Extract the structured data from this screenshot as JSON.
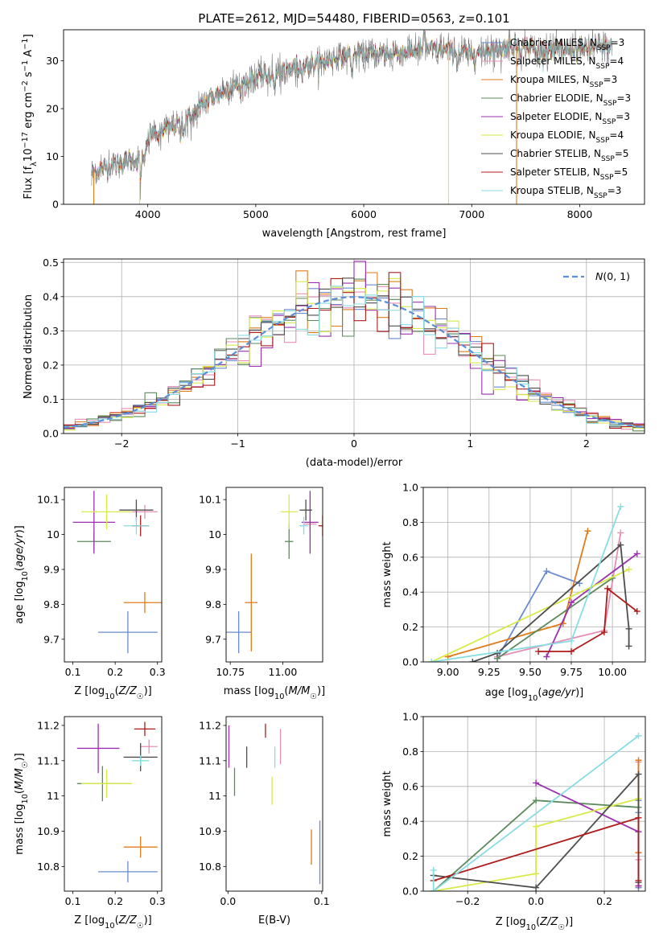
{
  "chart_data": [
    {
      "id": "spectrum",
      "type": "line",
      "title": "PLATE=2612, MJD=54480, FIBERID=0563, z=0.101",
      "xlabel": "wavelength [Angstrom, rest frame]",
      "ylabel": "Flux [f_λ10⁻¹⁷ erg cm⁻² s⁻¹ Å⁻¹]",
      "xlim": [
        3220,
        8600
      ],
      "ylim": [
        0,
        36.5
      ],
      "xticks": [
        4000,
        5000,
        6000,
        7000,
        8000
      ],
      "yticks": [
        0,
        10,
        20,
        30
      ],
      "legend_position": "upper-right",
      "continuum_knots": [
        [
          3480,
          6.5
        ],
        [
          3700,
          8.5
        ],
        [
          3900,
          9.5
        ],
        [
          3970,
          11.5
        ],
        [
          4020,
          14.5
        ],
        [
          4200,
          16
        ],
        [
          4400,
          18.5
        ],
        [
          4600,
          22.5
        ],
        [
          4800,
          24.5
        ],
        [
          5000,
          26.5
        ],
        [
          5200,
          27.5
        ],
        [
          5400,
          28.5
        ],
        [
          5600,
          29.5
        ],
        [
          5800,
          31
        ],
        [
          6000,
          31.5
        ],
        [
          6200,
          31.5
        ],
        [
          6400,
          31.8
        ],
        [
          6600,
          32.5
        ],
        [
          6800,
          32
        ],
        [
          7000,
          31.5
        ],
        [
          7200,
          32.5
        ],
        [
          7400,
          33
        ],
        [
          7600,
          32.5
        ],
        [
          7800,
          32.3
        ],
        [
          8000,
          32.5
        ],
        [
          8200,
          32.8
        ],
        [
          8300,
          33
        ]
      ],
      "model_range": [
        3480,
        8300
      ],
      "series": [
        {
          "name": "Chabrier MILES, N_SSP=3",
          "label_main": "Chabrier MILES, N",
          "label_sub": "SSP",
          "label_end": "=3",
          "color": "#6a8bd0"
        },
        {
          "name": "Salpeter MILES, N_SSP=4",
          "label_main": "Salpeter MILES, N",
          "label_sub": "SSP",
          "label_end": "=4",
          "color": "#e58fb5"
        },
        {
          "name": "Kroupa MILES, N_SSP=3",
          "label_main": "Kroupa MILES, N",
          "label_sub": "SSP",
          "label_end": "=3",
          "color": "#e07b1a"
        },
        {
          "name": "Chabrier ELODIE, N_SSP=3",
          "label_main": "Chabrier ELODIE, N",
          "label_sub": "SSP",
          "label_end": "=3",
          "color": "#5b8a5b"
        },
        {
          "name": "Salpeter ELODIE, N_SSP=3",
          "label_main": "Salpeter ELODIE, N",
          "label_sub": "SSP",
          "label_end": "=3",
          "color": "#9b30b0"
        },
        {
          "name": "Kroupa ELODIE, N_SSP=4",
          "label_main": "Kroupa ELODIE, N",
          "label_sub": "SSP",
          "label_end": "=4",
          "color": "#d8ea4a"
        },
        {
          "name": "Chabrier STELIB, N_SSP=5",
          "label_main": "Chabrier STELIB, N",
          "label_sub": "SSP",
          "label_end": "=5",
          "color": "#4d4d4d"
        },
        {
          "name": "Salpeter STELIB, N_SSP=5",
          "label_main": "Salpeter STELIB, N",
          "label_sub": "SSP",
          "label_end": "=5",
          "color": "#b01c1c"
        },
        {
          "name": "Kroupa STELIB, N_SSP=3",
          "label_main": "Kroupa STELIB, N",
          "label_sub": "SSP",
          "label_end": "=3",
          "color": "#88dde3"
        }
      ]
    },
    {
      "id": "residuals",
      "type": "histogram",
      "xlabel": "(data-model)/error",
      "ylabel": "Normed distribution",
      "xlim": [
        -2.5,
        2.5
      ],
      "ylim": [
        0,
        0.51
      ],
      "xticks": [
        -2,
        -1,
        0,
        1,
        2
      ],
      "xtick_labels": [
        "−2",
        "−1",
        "0",
        "1",
        "2"
      ],
      "yticks": [
        0,
        0.1,
        0.2,
        0.3,
        0.4,
        0.5
      ],
      "ytick_labels": [
        "0.0",
        "0.1",
        "0.2",
        "0.3",
        "0.4",
        "0.5"
      ],
      "grid": true,
      "reference_curve": {
        "name": "N(0,1)",
        "mean": 0,
        "sigma": 1,
        "color": "#5b8fd9"
      },
      "bin_width": 0.1,
      "series_colors": [
        "#6a8bd0",
        "#e58fb5",
        "#e07b1a",
        "#5b8a5b",
        "#9b30b0",
        "#d8ea4a",
        "#4d4d4d",
        "#b01c1c",
        "#88dde3"
      ]
    },
    {
      "id": "age_vs_Z",
      "type": "errorbar",
      "xlabel": "Z [log10(Z/Z☉)]",
      "ylabel": "age [log10(age/yr)]",
      "xlim": [
        0.08,
        0.31
      ],
      "ylim": [
        9.635,
        10.135
      ],
      "xticks": [
        0.1,
        0.2,
        0.3
      ],
      "yticks": [
        9.7,
        9.8,
        9.9,
        10.0,
        10.1
      ],
      "points": [
        {
          "x": 0.23,
          "xerr": 0.07,
          "y": 9.72,
          "yerr": 0.06,
          "color": "#6a8bd0"
        },
        {
          "x": 0.27,
          "xerr": 0.03,
          "y": 10.065,
          "yerr": 0.02,
          "color": "#e58fb5"
        },
        {
          "x": 0.27,
          "xerr": 0.05,
          "y": 9.805,
          "yerr": 0.03,
          "color": "#e07b1a"
        },
        {
          "x": 0.15,
          "xerr": 0.04,
          "y": 9.98,
          "yerr": 0.025,
          "color": "#5b8a5b"
        },
        {
          "x": 0.15,
          "xerr": 0.05,
          "y": 10.035,
          "yerr": 0.09,
          "color": "#9b30b0"
        },
        {
          "x": 0.18,
          "xerr": 0.06,
          "y": 10.065,
          "yerr": 0.05,
          "color": "#d8ea4a"
        },
        {
          "x": 0.25,
          "xerr": 0.04,
          "y": 10.07,
          "yerr": 0.03,
          "color": "#4d4d4d"
        },
        {
          "x": 0.26,
          "xerr": 0.02,
          "y": 10.025,
          "yerr": 0.03,
          "color": "#b01c1c"
        },
        {
          "x": 0.25,
          "xerr": 0.03,
          "y": 10.025,
          "yerr": 0.025,
          "color": "#88dde3"
        }
      ]
    },
    {
      "id": "age_vs_mass",
      "type": "errorbar",
      "xlabel": "mass [log10(M/M☉)]",
      "ylabel": "",
      "xlim": [
        10.73,
        11.19
      ],
      "ylim": [
        9.635,
        10.135
      ],
      "xticks": [
        10.75,
        11.0
      ],
      "xtick_labels": [
        "10.75",
        "11.00"
      ],
      "yticks": [
        9.7,
        9.8,
        9.9,
        10.0,
        10.1
      ],
      "points": [
        {
          "x": 10.79,
          "xerr": 0.06,
          "y": 9.72,
          "yerr": 0.06,
          "color": "#6a8bd0"
        },
        {
          "x": 11.13,
          "xerr": 0.03,
          "y": 10.03,
          "yerr": 0.02,
          "color": "#e58fb5"
        },
        {
          "x": 10.85,
          "xerr": 0.03,
          "y": 9.805,
          "yerr": 0.14,
          "color": "#e07b1a"
        },
        {
          "x": 11.03,
          "xerr": 0.02,
          "y": 9.98,
          "yerr": 0.05,
          "color": "#5b8a5b"
        },
        {
          "x": 11.13,
          "xerr": 0.04,
          "y": 10.035,
          "yerr": 0.09,
          "color": "#9b30b0"
        },
        {
          "x": 11.03,
          "xerr": 0.04,
          "y": 10.065,
          "yerr": 0.05,
          "color": "#d8ea4a"
        },
        {
          "x": 11.11,
          "xerr": 0.03,
          "y": 10.07,
          "yerr": 0.03,
          "color": "#4d4d4d"
        },
        {
          "x": 11.19,
          "xerr": 0.02,
          "y": 10.025,
          "yerr": 0.03,
          "color": "#b01c1c"
        },
        {
          "x": 11.1,
          "xerr": 0.02,
          "y": 10.025,
          "yerr": 0.025,
          "color": "#88dde3"
        }
      ]
    },
    {
      "id": "weight_vs_age",
      "type": "line",
      "xlabel": "age [log10(age/yr)]",
      "ylabel": "mass weight",
      "xlim": [
        8.85,
        10.2
      ],
      "ylim": [
        0,
        1.0
      ],
      "xticks": [
        9.0,
        9.25,
        9.5,
        9.75,
        10.0
      ],
      "xtick_labels": [
        "9.00",
        "9.25",
        "9.50",
        "9.75",
        "10.00"
      ],
      "yticks": [
        0,
        0.2,
        0.4,
        0.6,
        0.8,
        1.0
      ],
      "ytick_labels": [
        "0.0",
        "0.2",
        "0.4",
        "0.6",
        "0.8",
        "1.0"
      ],
      "grid": true,
      "series": [
        {
          "name": "Chabrier MILES",
          "color": "#6a8bd0",
          "points": [
            [
              9.3,
              0.02
            ],
            [
              9.6,
              0.52
            ],
            [
              9.8,
              0.45
            ]
          ]
        },
        {
          "name": "Salpeter MILES",
          "color": "#e58fb5",
          "points": [
            [
              9.3,
              0.03
            ],
            [
              9.95,
              0.18
            ],
            [
              10.05,
              0.74
            ]
          ]
        },
        {
          "name": "Kroupa MILES",
          "color": "#e07b1a",
          "points": [
            [
              9.0,
              0.03
            ],
            [
              9.7,
              0.22
            ],
            [
              9.85,
              0.75
            ]
          ]
        },
        {
          "name": "Chabrier ELODIE",
          "color": "#5b8a5b",
          "points": [
            [
              9.3,
              0.02
            ],
            [
              10.0,
              0.48
            ]
          ]
        },
        {
          "name": "Salpeter ELODIE",
          "color": "#9b30b0",
          "points": [
            [
              9.6,
              0.03
            ],
            [
              9.75,
              0.34
            ],
            [
              10.15,
              0.62
            ]
          ]
        },
        {
          "name": "Kroupa ELODIE",
          "color": "#d8ea4a",
          "points": [
            [
              8.9,
              0.0
            ],
            [
              10.1,
              0.53
            ]
          ]
        },
        {
          "name": "Chabrier STELIB",
          "color": "#4d4d4d",
          "points": [
            [
              9.15,
              0.0
            ],
            [
              9.3,
              0.05
            ],
            [
              10.05,
              0.67
            ],
            [
              10.1,
              0.19
            ],
            [
              10.1,
              0.09
            ]
          ]
        },
        {
          "name": "Salpeter STELIB",
          "color": "#b01c1c",
          "points": [
            [
              9.55,
              0.06
            ],
            [
              9.75,
              0.06
            ],
            [
              9.95,
              0.17
            ],
            [
              9.97,
              0.42
            ],
            [
              10.15,
              0.29
            ]
          ]
        },
        {
          "name": "Kroupa STELIB",
          "color": "#88dde3",
          "points": [
            [
              8.9,
              0.0
            ],
            [
              9.75,
              0.12
            ],
            [
              10.05,
              0.89
            ]
          ]
        }
      ]
    },
    {
      "id": "mass_vs_Z",
      "type": "errorbar",
      "xlabel": "Z [log10(Z/Z☉)]",
      "ylabel": "mass [log10(M/M☉)]",
      "xlim": [
        0.08,
        0.31
      ],
      "ylim": [
        10.73,
        11.225
      ],
      "xticks": [
        0.1,
        0.2,
        0.3
      ],
      "yticks": [
        10.8,
        10.9,
        11.0,
        11.1,
        11.2
      ],
      "points": [
        {
          "x": 0.23,
          "xerr": 0.07,
          "y": 10.785,
          "yerr": 0.03,
          "color": "#6a8bd0"
        },
        {
          "x": 0.28,
          "xerr": 0.02,
          "y": 11.14,
          "yerr": 0.02,
          "color": "#e58fb5"
        },
        {
          "x": 0.26,
          "xerr": 0.04,
          "y": 10.855,
          "yerr": 0.03,
          "color": "#e07b1a"
        },
        {
          "x": 0.17,
          "xerr": 0.06,
          "y": 11.035,
          "yerr": 0.05,
          "color": "#5b8a5b"
        },
        {
          "x": 0.16,
          "xerr": 0.05,
          "y": 11.135,
          "yerr": 0.07,
          "color": "#9b30b0"
        },
        {
          "x": 0.18,
          "xerr": 0.06,
          "y": 11.035,
          "yerr": 0.04,
          "color": "#d8ea4a"
        },
        {
          "x": 0.26,
          "xerr": 0.04,
          "y": 11.11,
          "yerr": 0.04,
          "color": "#4d4d4d"
        },
        {
          "x": 0.27,
          "xerr": 0.025,
          "y": 11.19,
          "yerr": 0.02,
          "color": "#b01c1c"
        },
        {
          "x": 0.26,
          "xerr": 0.02,
          "y": 11.1,
          "yerr": 0.015,
          "color": "#88dde3"
        }
      ]
    },
    {
      "id": "mass_vs_ebv",
      "type": "errorbar",
      "xlabel": "E(B-V)",
      "ylabel": "",
      "xlim": [
        -0.002,
        0.101
      ],
      "ylim": [
        10.73,
        11.225
      ],
      "xticks": [
        0.0,
        0.1
      ],
      "xtick_labels": [
        "0.0",
        "0.1"
      ],
      "yticks": [
        10.8,
        10.9,
        11.0,
        11.1,
        11.2
      ],
      "points": [
        {
          "x": 0.098,
          "xerr": 0,
          "y": 10.84,
          "yerr": 0.09,
          "color": "#6a8bd0"
        },
        {
          "x": 0.056,
          "xerr": 0,
          "y": 11.14,
          "yerr": 0.05,
          "color": "#e58fb5"
        },
        {
          "x": 0.089,
          "xerr": 0,
          "y": 10.855,
          "yerr": 0.05,
          "color": "#e07b1a"
        },
        {
          "x": 0.007,
          "xerr": 0,
          "y": 11.04,
          "yerr": 0.04,
          "color": "#5b8a5b"
        },
        {
          "x": 0.001,
          "xerr": 0,
          "y": 11.14,
          "yerr": 0.06,
          "color": "#9b30b0"
        },
        {
          "x": 0.047,
          "xerr": 0,
          "y": 11.015,
          "yerr": 0.04,
          "color": "#d8ea4a"
        },
        {
          "x": 0.02,
          "xerr": 0,
          "y": 11.11,
          "yerr": 0.03,
          "color": "#4d4d4d"
        },
        {
          "x": 0.04,
          "xerr": 0,
          "y": 11.185,
          "yerr": 0.02,
          "color": "#b01c1c"
        },
        {
          "x": 0.05,
          "xerr": 0,
          "y": 11.11,
          "yerr": 0.03,
          "color": "#88dde3"
        }
      ]
    },
    {
      "id": "weight_vs_Z",
      "type": "line",
      "xlabel": "Z [log10(Z/Z☉)]",
      "ylabel": "mass weight",
      "xlim": [
        -0.33,
        0.32
      ],
      "ylim": [
        0,
        1.0
      ],
      "xticks": [
        -0.2,
        0.0,
        0.2
      ],
      "xtick_labels": [
        "−0.2",
        "0.0",
        "0.2"
      ],
      "yticks": [
        0,
        0.2,
        0.4,
        0.6,
        0.8,
        1.0
      ],
      "ytick_labels": [
        "0.0",
        "0.2",
        "0.4",
        "0.6",
        "0.8",
        "1.0"
      ],
      "grid": true,
      "series": [
        {
          "name": "Chabrier MILES",
          "color": "#6a8bd0",
          "points": [
            [
              0.3,
              0.02
            ],
            [
              0.3,
              0.45
            ],
            [
              0.3,
              0.52
            ]
          ]
        },
        {
          "name": "Salpeter MILES",
          "color": "#e58fb5",
          "points": [
            [
              0.3,
              0.03
            ],
            [
              0.3,
              0.18
            ],
            [
              0.3,
              0.74
            ]
          ]
        },
        {
          "name": "Kroupa MILES",
          "color": "#e07b1a",
          "points": [
            [
              0.3,
              0.03
            ],
            [
              0.3,
              0.22
            ],
            [
              0.3,
              0.75
            ]
          ]
        },
        {
          "name": "Chabrier ELODIE",
          "color": "#5b8a5b",
          "points": [
            [
              -0.3,
              0.0
            ],
            [
              0.0,
              0.52
            ],
            [
              0.3,
              0.48
            ]
          ]
        },
        {
          "name": "Salpeter ELODIE",
          "color": "#9b30b0",
          "points": [
            [
              0.0,
              0.62
            ],
            [
              0.3,
              0.34
            ],
            [
              0.3,
              0.03
            ]
          ]
        },
        {
          "name": "Kroupa ELODIE",
          "color": "#d8ea4a",
          "points": [
            [
              -0.3,
              0.0
            ],
            [
              0.0,
              0.1
            ],
            [
              0.0,
              0.37
            ],
            [
              0.3,
              0.53
            ]
          ]
        },
        {
          "name": "Chabrier STELIB",
          "color": "#4d4d4d",
          "points": [
            [
              -0.3,
              0.09
            ],
            [
              0.0,
              0.02
            ],
            [
              0.3,
              0.67
            ],
            [
              0.3,
              0.05
            ]
          ]
        },
        {
          "name": "Salpeter STELIB",
          "color": "#b01c1c",
          "points": [
            [
              -0.3,
              0.06
            ],
            [
              0.3,
              0.42
            ],
            [
              0.3,
              0.06
            ]
          ]
        },
        {
          "name": "Kroupa STELIB",
          "color": "#88dde3",
          "points": [
            [
              -0.3,
              0.12
            ],
            [
              -0.3,
              0.0
            ],
            [
              0.3,
              0.89
            ]
          ]
        }
      ]
    }
  ]
}
